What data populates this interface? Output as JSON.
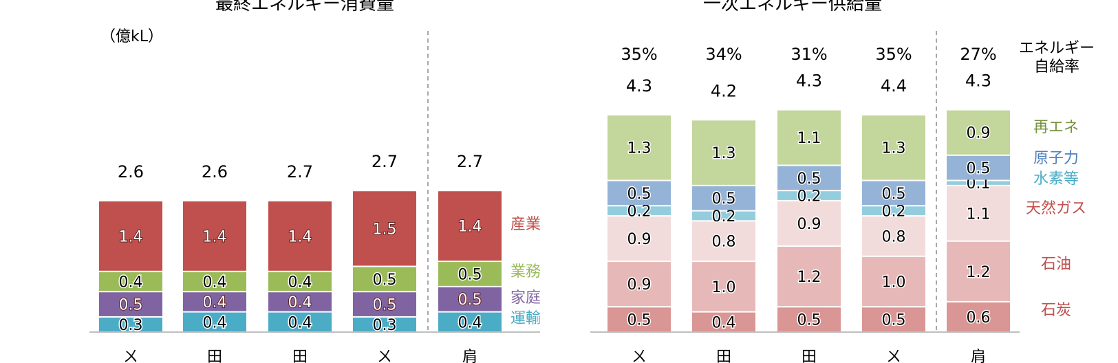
{
  "chart_data": [
    {
      "type": "bar",
      "stacked": true,
      "title": "最終エネルギー消費量",
      "unit_label": "（億kL）",
      "category_marks": [
        "ㄨ",
        "田",
        "田",
        "ㄨ",
        "肩"
      ],
      "totals": [
        "2.6",
        "2.6",
        "2.7",
        "2.7",
        "2.7"
      ],
      "series": [
        {
          "name": "運輸",
          "color": "#4bacc6",
          "values": [
            0.3,
            0.4,
            0.4,
            0.3,
            0.4
          ]
        },
        {
          "name": "家庭",
          "color": "#8064a2",
          "values": [
            0.5,
            0.4,
            0.4,
            0.5,
            0.5
          ]
        },
        {
          "name": "業務",
          "color": "#9bbb59",
          "values": [
            0.4,
            0.4,
            0.4,
            0.5,
            0.5
          ]
        },
        {
          "name": "産業",
          "color": "#c0504d",
          "values": [
            1.4,
            1.4,
            1.4,
            1.5,
            1.4
          ]
        }
      ],
      "label_colors": {
        "産業": "#c0504d",
        "業務": "#9bbb59",
        "家庭": "#8064a2",
        "運輸": "#4bacc6"
      }
    },
    {
      "type": "bar",
      "stacked": true,
      "title": "一次エネルギー供給量",
      "self_sufficiency_label": [
        "エネルギー",
        "自給率"
      ],
      "self_sufficiency": [
        "35%",
        "34%",
        "31%",
        "35%",
        "27%"
      ],
      "category_marks": [
        "ㄨ",
        "田",
        "田",
        "ㄨ",
        "肩"
      ],
      "totals": [
        "4.3",
        "4.2",
        "4.3",
        "4.4",
        "4.3"
      ],
      "series": [
        {
          "name": "石炭",
          "color": "#d99694",
          "values": [
            0.5,
            0.4,
            0.5,
            0.5,
            0.6
          ]
        },
        {
          "name": "石油",
          "color": "#e6b9b8",
          "values": [
            0.9,
            1.0,
            1.2,
            1.0,
            1.2
          ]
        },
        {
          "name": "天然ガス",
          "color": "#f2dcdb",
          "values": [
            0.9,
            0.8,
            0.9,
            0.8,
            1.1
          ]
        },
        {
          "name": "水素等",
          "color": "#93cddd",
          "values": [
            0.2,
            0.2,
            0.2,
            0.2,
            0.1
          ]
        },
        {
          "name": "原子力",
          "color": "#95b3d7",
          "values": [
            0.5,
            0.5,
            0.5,
            0.5,
            0.5
          ]
        },
        {
          "name": "再エネ",
          "color": "#c3d69b",
          "values": [
            1.3,
            1.3,
            1.1,
            1.3,
            0.9
          ]
        }
      ],
      "label_colors": {
        "再エネ": "#77933c",
        "原子力": "#4f81bd",
        "水素等": "#4bacc6",
        "天然ガス": "#c0504d",
        "石油": "#c0504d",
        "石炭": "#c0504d"
      }
    }
  ]
}
